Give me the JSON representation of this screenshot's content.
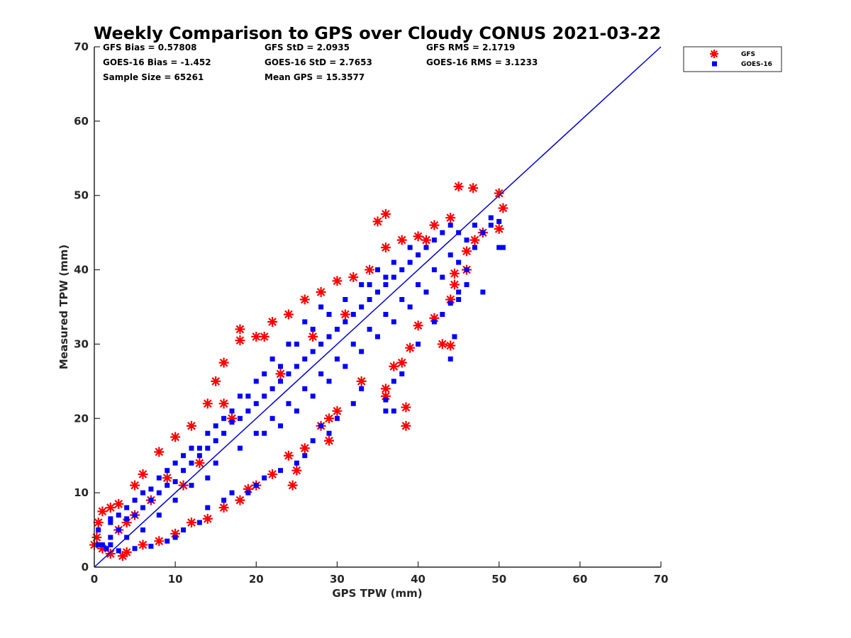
{
  "chart_data": {
    "type": "scatter",
    "title": "Weekly Comparison to GPS over Cloudy CONUS 2021-03-22",
    "xlabel": "GPS TPW (mm)",
    "ylabel": "Measured TPW (mm)",
    "xlim": [
      0,
      70
    ],
    "ylim": [
      0,
      70
    ],
    "xticks": [
      "0",
      "10",
      "20",
      "30",
      "40",
      "50",
      "60",
      "70"
    ],
    "yticks": [
      "0",
      "10",
      "20",
      "30",
      "40",
      "50",
      "60",
      "70"
    ],
    "grid": false,
    "legend_position": "outside-top-right",
    "stats": [
      [
        "GFS Bias = 0.57808",
        "GFS StD = 2.0935",
        "GFS RMS = 2.1719"
      ],
      [
        "GOES-16 Bias = -1.452",
        "GOES-16 StD = 2.7653",
        "GOES-16 RMS = 3.1233"
      ],
      [
        "Sample Size = 65261",
        "Mean GPS = 15.3577"
      ]
    ],
    "reference_line": {
      "x": [
        0,
        70
      ],
      "y": [
        0,
        70
      ],
      "color": "#0000dd"
    },
    "series": [
      {
        "name": "GFS",
        "marker": "asterisk",
        "color": "#ff0000",
        "points": [
          [
            0.5,
            6
          ],
          [
            1,
            7.5
          ],
          [
            2,
            8
          ],
          [
            3,
            8.5
          ],
          [
            5,
            11
          ],
          [
            6,
            12.5
          ],
          [
            8,
            15.5
          ],
          [
            10,
            17.5
          ],
          [
            12,
            19
          ],
          [
            14,
            22
          ],
          [
            16,
            22
          ],
          [
            15,
            25
          ],
          [
            16,
            27.5
          ],
          [
            18,
            32
          ],
          [
            18,
            30.5
          ],
          [
            20,
            31
          ],
          [
            21,
            31
          ],
          [
            22,
            33
          ],
          [
            24,
            34
          ],
          [
            26,
            36
          ],
          [
            28,
            37
          ],
          [
            30,
            38.5
          ],
          [
            32,
            39
          ],
          [
            34,
            40
          ],
          [
            36,
            43
          ],
          [
            38,
            44
          ],
          [
            40,
            44.5
          ],
          [
            42,
            46
          ],
          [
            44,
            47
          ],
          [
            45,
            51.2
          ],
          [
            46.8,
            51
          ],
          [
            50,
            50.3
          ],
          [
            50.5,
            48.3
          ],
          [
            50,
            45.5
          ],
          [
            48,
            45
          ],
          [
            47,
            44
          ],
          [
            46,
            42.5
          ],
          [
            44.5,
            38
          ],
          [
            44,
            36
          ],
          [
            42,
            33.5
          ],
          [
            43,
            30
          ],
          [
            44,
            29.8
          ],
          [
            40,
            32.5
          ],
          [
            39,
            29.5
          ],
          [
            38,
            27.5
          ],
          [
            37,
            27
          ],
          [
            36,
            24
          ],
          [
            36,
            23
          ],
          [
            38.5,
            21.5
          ],
          [
            38.5,
            19
          ],
          [
            33,
            25
          ],
          [
            30,
            21
          ],
          [
            29,
            20
          ],
          [
            28,
            19
          ],
          [
            29,
            17
          ],
          [
            26,
            16
          ],
          [
            24,
            15
          ],
          [
            25,
            13
          ],
          [
            24.5,
            11
          ],
          [
            22,
            12.5
          ],
          [
            20,
            11
          ],
          [
            19,
            10.5
          ],
          [
            18,
            9
          ],
          [
            16,
            8
          ],
          [
            14,
            6.5
          ],
          [
            12,
            6
          ],
          [
            10,
            4.5
          ],
          [
            8,
            3.5
          ],
          [
            6,
            3
          ],
          [
            4,
            2
          ],
          [
            3.5,
            1.5
          ],
          [
            2,
            1.8
          ],
          [
            1,
            2.5
          ],
          [
            0,
            3
          ],
          [
            0.3,
            4
          ],
          [
            35,
            46.5
          ],
          [
            36,
            47.5
          ],
          [
            41,
            44
          ],
          [
            44.5,
            39.5
          ],
          [
            46,
            40
          ],
          [
            13,
            14
          ],
          [
            17,
            20
          ],
          [
            23,
            26
          ],
          [
            27,
            31
          ],
          [
            31,
            34
          ],
          [
            9,
            12
          ],
          [
            11,
            11
          ],
          [
            7,
            9
          ],
          [
            5,
            7
          ],
          [
            4,
            6
          ],
          [
            3,
            5
          ]
        ]
      },
      {
        "name": "GOES-16",
        "marker": "square",
        "color": "#0000ff",
        "points": [
          [
            1,
            3
          ],
          [
            2,
            4
          ],
          [
            3,
            5
          ],
          [
            4,
            6.5
          ],
          [
            5,
            7
          ],
          [
            6,
            8
          ],
          [
            7,
            9
          ],
          [
            8,
            10
          ],
          [
            9,
            11
          ],
          [
            10,
            11.5
          ],
          [
            11,
            13
          ],
          [
            12,
            14
          ],
          [
            13,
            15
          ],
          [
            14,
            16
          ],
          [
            15,
            17
          ],
          [
            16,
            18
          ],
          [
            17,
            19.5
          ],
          [
            18,
            20
          ],
          [
            19,
            21
          ],
          [
            20,
            22
          ],
          [
            21,
            23
          ],
          [
            22,
            24
          ],
          [
            23,
            25
          ],
          [
            24,
            26
          ],
          [
            25,
            27
          ],
          [
            26,
            28
          ],
          [
            27,
            29
          ],
          [
            28,
            30
          ],
          [
            29,
            31
          ],
          [
            30,
            32
          ],
          [
            31,
            33
          ],
          [
            32,
            34
          ],
          [
            33,
            35
          ],
          [
            34,
            36
          ],
          [
            35,
            37
          ],
          [
            36,
            38
          ],
          [
            37,
            39
          ],
          [
            38,
            40
          ],
          [
            39,
            41
          ],
          [
            40,
            42
          ],
          [
            41,
            43
          ],
          [
            42,
            44
          ],
          [
            43,
            45
          ],
          [
            44,
            46
          ],
          [
            45,
            45
          ],
          [
            46,
            44
          ],
          [
            47,
            46
          ],
          [
            48,
            45
          ],
          [
            49,
            46
          ],
          [
            50,
            43
          ],
          [
            50.5,
            43
          ],
          [
            50,
            46.5
          ],
          [
            46,
            40
          ],
          [
            45,
            37
          ],
          [
            44,
            35.5
          ],
          [
            43,
            34
          ],
          [
            44.5,
            31
          ],
          [
            44,
            28
          ],
          [
            42,
            33
          ],
          [
            40,
            30
          ],
          [
            38,
            26
          ],
          [
            37,
            25
          ],
          [
            36,
            22.5
          ],
          [
            36,
            21
          ],
          [
            37,
            21
          ],
          [
            33,
            24
          ],
          [
            32,
            22
          ],
          [
            30,
            20
          ],
          [
            29,
            18
          ],
          [
            28,
            19
          ],
          [
            27,
            17
          ],
          [
            26,
            15
          ],
          [
            25,
            14
          ],
          [
            23,
            13
          ],
          [
            21,
            12
          ],
          [
            20,
            11
          ],
          [
            19,
            10
          ],
          [
            17,
            10
          ],
          [
            16,
            9
          ],
          [
            14,
            8
          ],
          [
            13,
            6
          ],
          [
            11,
            5
          ],
          [
            10,
            4
          ],
          [
            9,
            3.5
          ],
          [
            7,
            2.8
          ],
          [
            5,
            2.5
          ],
          [
            3,
            2.2
          ],
          [
            1.5,
            2.5
          ],
          [
            0.5,
            3
          ],
          [
            0.5,
            5
          ],
          [
            2,
            6
          ],
          [
            3,
            7
          ],
          [
            5,
            9
          ],
          [
            7,
            10.5
          ],
          [
            9,
            13
          ],
          [
            11,
            15
          ],
          [
            13,
            16
          ],
          [
            15,
            19
          ],
          [
            17,
            21
          ],
          [
            19,
            23
          ],
          [
            21,
            26
          ],
          [
            23,
            27
          ],
          [
            25,
            30
          ],
          [
            27,
            32
          ],
          [
            29,
            34
          ],
          [
            31,
            36
          ],
          [
            33,
            38
          ],
          [
            35,
            40
          ],
          [
            37,
            41
          ],
          [
            39,
            43
          ],
          [
            15,
            14
          ],
          [
            18,
            16
          ],
          [
            20,
            18
          ],
          [
            22,
            20
          ],
          [
            24,
            22
          ],
          [
            26,
            24
          ],
          [
            28,
            26
          ],
          [
            30,
            28
          ],
          [
            32,
            30
          ],
          [
            34,
            32
          ],
          [
            36,
            34
          ],
          [
            38,
            36
          ],
          [
            40,
            38
          ],
          [
            42,
            40
          ],
          [
            44,
            42
          ],
          [
            8,
            7
          ],
          [
            10,
            9
          ],
          [
            12,
            11
          ],
          [
            14,
            12
          ],
          [
            6,
            5
          ],
          [
            4,
            4
          ],
          [
            2,
            3
          ],
          [
            21,
            18
          ],
          [
            23,
            19
          ],
          [
            25,
            21
          ],
          [
            27,
            23
          ],
          [
            29,
            25
          ],
          [
            31,
            27
          ],
          [
            33,
            29
          ],
          [
            35,
            31
          ],
          [
            37,
            33
          ],
          [
            39,
            35
          ],
          [
            41,
            37
          ],
          [
            43,
            39
          ],
          [
            45,
            41
          ],
          [
            47,
            43
          ],
          [
            49,
            47
          ],
          [
            46,
            38
          ],
          [
            48,
            37
          ],
          [
            45,
            36
          ],
          [
            36,
            39
          ],
          [
            34,
            38
          ],
          [
            28,
            35
          ],
          [
            26,
            33
          ],
          [
            24,
            30
          ],
          [
            22,
            28
          ],
          [
            20,
            25
          ],
          [
            18,
            23
          ],
          [
            16,
            20
          ],
          [
            14,
            18
          ],
          [
            12,
            16
          ],
          [
            10,
            14
          ],
          [
            8,
            12
          ],
          [
            6,
            10
          ],
          [
            4,
            8
          ],
          [
            2,
            6.5
          ]
        ]
      }
    ]
  }
}
